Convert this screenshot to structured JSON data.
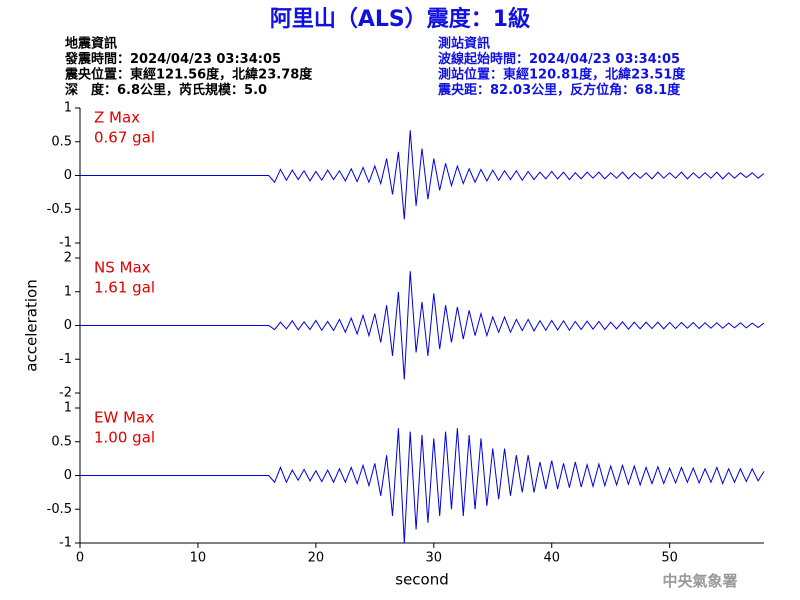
{
  "header": {
    "title": "阿里山（ALS）震度：1級",
    "left": [
      "地震資訊",
      "發震時間：2024/04/23 03:34:05",
      "震央位置：東經121.56度，北緯23.78度",
      "深　度：6.8公里，芮氏規模：5.0"
    ],
    "right": [
      "測站資訊",
      "波線起始時間：2024/04/23 03:34:05",
      "測站位置：東經120.81度，北緯23.51度",
      "震央距：82.03公里，反方位角：68.1度"
    ]
  },
  "watermark": "中央氣象署",
  "chart_data": [
    {
      "type": "line",
      "annotation": [
        "Z Max",
        "0.67 gal"
      ],
      "color": "#0000e0",
      "annotation_color": "#e00000",
      "xlim": [
        0,
        58
      ],
      "ylim": [
        -1,
        1
      ],
      "yticks": [
        -1,
        -0.5,
        0,
        0.5,
        1
      ],
      "x": [
        0,
        16,
        16.5,
        17,
        17.5,
        18,
        18.5,
        19,
        19.5,
        20,
        20.5,
        21,
        21.5,
        22,
        22.5,
        23,
        23.5,
        24,
        24.5,
        25,
        25.5,
        26,
        26.5,
        27,
        27.5,
        28,
        28.5,
        29,
        29.5,
        30,
        30.5,
        31,
        31.5,
        32,
        32.5,
        33,
        33.5,
        34,
        34.5,
        35,
        35.5,
        36,
        36.5,
        37,
        37.5,
        38,
        38.5,
        39,
        39.5,
        40,
        40.5,
        41,
        41.5,
        42,
        42.5,
        43,
        43.5,
        44,
        44.5,
        45,
        45.5,
        46,
        46.5,
        47,
        47.5,
        48,
        48.5,
        49,
        49.5,
        50,
        50.5,
        51,
        51.5,
        52,
        52.5,
        53,
        53.5,
        54,
        54.5,
        55,
        55.5,
        56,
        56.5,
        57,
        57.5,
        58
      ],
      "values": [
        0,
        0,
        -0.1,
        0.09,
        -0.07,
        0.08,
        -0.06,
        0.07,
        -0.08,
        0.06,
        -0.07,
        0.08,
        -0.06,
        0.07,
        -0.08,
        0.1,
        -0.09,
        0.12,
        -0.1,
        0.14,
        -0.12,
        0.25,
        -0.28,
        0.35,
        -0.65,
        0.67,
        -0.45,
        0.4,
        -0.35,
        0.25,
        -0.22,
        0.18,
        -0.15,
        0.14,
        -0.12,
        0.1,
        -0.1,
        0.09,
        -0.08,
        0.08,
        -0.07,
        0.07,
        -0.06,
        0.07,
        -0.07,
        0.06,
        -0.06,
        0.05,
        -0.05,
        0.06,
        -0.05,
        0.05,
        -0.06,
        0.04,
        -0.05,
        0.05,
        -0.04,
        0.05,
        -0.05,
        0.04,
        -0.04,
        0.05,
        -0.05,
        0.04,
        -0.04,
        0.04,
        -0.05,
        0.05,
        -0.04,
        0.04,
        -0.04,
        0.05,
        -0.05,
        0.04,
        -0.04,
        0.04,
        -0.04,
        0.05,
        -0.05,
        0.04,
        -0.04,
        0.04,
        -0.03,
        0.04,
        -0.04,
        0.03
      ]
    },
    {
      "type": "line",
      "annotation": [
        "NS Max",
        "1.61 gal"
      ],
      "color": "#0000e0",
      "annotation_color": "#e00000",
      "ylabel": "acceleration",
      "xlim": [
        0,
        58
      ],
      "ylim": [
        -2,
        2
      ],
      "yticks": [
        -2,
        -1,
        0,
        1,
        2
      ],
      "x": [
        0,
        16,
        16.5,
        17,
        17.5,
        18,
        18.5,
        19,
        19.5,
        20,
        20.5,
        21,
        21.5,
        22,
        22.5,
        23,
        23.5,
        24,
        24.5,
        25,
        25.5,
        26,
        26.5,
        27,
        27.5,
        28,
        28.5,
        29,
        29.5,
        30,
        30.5,
        31,
        31.5,
        32,
        32.5,
        33,
        33.5,
        34,
        34.5,
        35,
        35.5,
        36,
        36.5,
        37,
        37.5,
        38,
        38.5,
        39,
        39.5,
        40,
        40.5,
        41,
        41.5,
        42,
        42.5,
        43,
        43.5,
        44,
        44.5,
        45,
        45.5,
        46,
        46.5,
        47,
        47.5,
        48,
        48.5,
        49,
        49.5,
        50,
        50.5,
        51,
        51.5,
        52,
        52.5,
        53,
        53.5,
        54,
        54.5,
        55,
        55.5,
        56,
        56.5,
        57,
        57.5,
        58
      ],
      "values": [
        0,
        0,
        -0.12,
        0.1,
        -0.1,
        0.14,
        -0.13,
        0.11,
        -0.12,
        0.15,
        -0.14,
        0.12,
        -0.15,
        0.18,
        -0.2,
        0.22,
        -0.25,
        0.3,
        -0.3,
        0.35,
        -0.5,
        0.6,
        -0.9,
        1.0,
        -1.6,
        1.61,
        -0.8,
        0.7,
        -0.9,
        0.95,
        -0.7,
        0.6,
        -0.5,
        0.55,
        -0.4,
        0.45,
        -0.3,
        0.35,
        -0.3,
        0.25,
        -0.2,
        0.25,
        -0.2,
        0.18,
        -0.15,
        0.18,
        -0.16,
        0.14,
        -0.14,
        0.15,
        -0.13,
        0.14,
        -0.14,
        0.12,
        -0.12,
        0.13,
        -0.11,
        0.12,
        -0.12,
        0.1,
        -0.1,
        0.11,
        -0.11,
        0.1,
        -0.1,
        0.1,
        -0.09,
        0.1,
        -0.1,
        0.09,
        -0.09,
        0.09,
        -0.08,
        0.09,
        -0.09,
        0.08,
        -0.08,
        0.08,
        -0.08,
        0.07,
        -0.07,
        0.08,
        -0.07,
        0.07,
        -0.06,
        0.07
      ]
    },
    {
      "type": "line",
      "annotation": [
        "EW Max",
        "1.00 gal"
      ],
      "color": "#0000e0",
      "annotation_color": "#e00000",
      "xlabel": "second",
      "xlim": [
        0,
        58
      ],
      "xticks": [
        0,
        10,
        20,
        30,
        40,
        50
      ],
      "ylim": [
        -1,
        1
      ],
      "yticks": [
        -1,
        -0.5,
        0,
        0.5,
        1
      ],
      "x": [
        0,
        16,
        16.5,
        17,
        17.5,
        18,
        18.5,
        19,
        19.5,
        20,
        20.5,
        21,
        21.5,
        22,
        22.5,
        23,
        23.5,
        24,
        24.5,
        25,
        25.5,
        26,
        26.5,
        27,
        27.5,
        28,
        28.5,
        29,
        29.5,
        30,
        30.5,
        31,
        31.5,
        32,
        32.5,
        33,
        33.5,
        34,
        34.5,
        35,
        35.5,
        36,
        36.5,
        37,
        37.5,
        38,
        38.5,
        39,
        39.5,
        40,
        40.5,
        41,
        41.5,
        42,
        42.5,
        43,
        43.5,
        44,
        44.5,
        45,
        45.5,
        46,
        46.5,
        47,
        47.5,
        48,
        48.5,
        49,
        49.5,
        50,
        50.5,
        51,
        51.5,
        52,
        52.5,
        53,
        53.5,
        54,
        54.5,
        55,
        55.5,
        56,
        56.5,
        57,
        57.5,
        58
      ],
      "values": [
        0,
        0,
        -0.1,
        0.12,
        -0.1,
        0.08,
        -0.07,
        0.09,
        -0.08,
        0.07,
        -0.09,
        0.08,
        -0.1,
        0.1,
        -0.1,
        0.12,
        -0.12,
        0.15,
        -0.15,
        0.18,
        -0.3,
        0.3,
        -0.6,
        0.7,
        -1.0,
        0.65,
        -0.8,
        0.6,
        -0.7,
        0.55,
        -0.6,
        0.65,
        -0.5,
        0.7,
        -0.6,
        0.6,
        -0.5,
        0.55,
        -0.45,
        0.4,
        -0.35,
        0.4,
        -0.3,
        0.3,
        -0.25,
        0.3,
        -0.25,
        0.2,
        -0.2,
        0.22,
        -0.2,
        0.18,
        -0.18,
        0.2,
        -0.17,
        0.16,
        -0.16,
        0.17,
        -0.15,
        0.14,
        -0.14,
        0.15,
        -0.13,
        0.14,
        -0.14,
        0.12,
        -0.12,
        0.13,
        -0.12,
        0.11,
        -0.11,
        0.12,
        -0.1,
        0.11,
        -0.11,
        0.1,
        -0.1,
        0.12,
        -0.12,
        0.1,
        -0.1,
        0.1,
        -0.09,
        0.1,
        -0.08,
        0.06
      ]
    }
  ]
}
